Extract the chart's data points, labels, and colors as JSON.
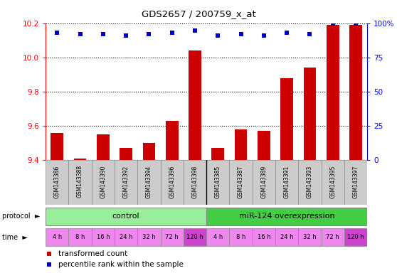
{
  "title": "GDS2657 / 200759_x_at",
  "samples": [
    "GSM143386",
    "GSM143388",
    "GSM143390",
    "GSM143392",
    "GSM143394",
    "GSM143396",
    "GSM143398",
    "GSM143385",
    "GSM143387",
    "GSM143389",
    "GSM143391",
    "GSM143393",
    "GSM143395",
    "GSM143397"
  ],
  "bar_values": [
    9.56,
    9.41,
    9.55,
    9.47,
    9.5,
    9.63,
    10.04,
    9.47,
    9.58,
    9.57,
    9.88,
    9.94,
    10.19,
    10.19
  ],
  "bar_baseline": 9.4,
  "percentile_values": [
    93,
    92,
    92,
    91,
    92,
    93,
    95,
    91,
    92,
    91,
    93,
    92,
    100,
    100
  ],
  "ylim_left": [
    9.4,
    10.2
  ],
  "ylim_right": [
    0,
    100
  ],
  "yticks_left": [
    9.4,
    9.6,
    9.8,
    10.0,
    10.2
  ],
  "yticks_right": [
    0,
    25,
    50,
    75,
    100
  ],
  "bar_color": "#cc0000",
  "dot_color": "#0000cc",
  "protocol_control": "control",
  "protocol_treatment": "miR-124 overexpression",
  "control_color": "#99ee99",
  "treatment_color": "#44cc44",
  "time_labels": [
    "4 h",
    "8 h",
    "16 h",
    "24 h",
    "32 h",
    "72 h",
    "120 h",
    "4 h",
    "8 h",
    "16 h",
    "24 h",
    "32 h",
    "72 h",
    "120 h"
  ],
  "time_colors_light": "#ee88ee",
  "time_colors_dark": "#cc44cc",
  "time_color_pattern": [
    0,
    0,
    0,
    0,
    0,
    0,
    1,
    0,
    0,
    0,
    0,
    0,
    0,
    1
  ],
  "legend_bar_label": "transformed count",
  "legend_dot_label": "percentile rank within the sample",
  "n_control": 7,
  "n_treatment": 7,
  "label_bg": "#cccccc",
  "separator_color": "#000000",
  "grid_color": "#000000",
  "bg_color": "#ffffff"
}
